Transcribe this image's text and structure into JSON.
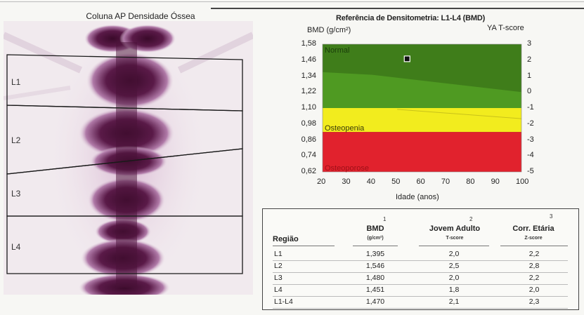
{
  "scan": {
    "title": "Coluna AP Densidade Óssea",
    "rois": [
      "L1",
      "L2",
      "L3",
      "L4"
    ]
  },
  "chart_data": {
    "type": "area",
    "title": "Referência de Densitometria: L1-L4 (BMD)",
    "ylabel": "BMD (g/cm²)",
    "y2label": "YA T-score",
    "xlabel": "Idade (anos)",
    "x_ticks": [
      20,
      30,
      40,
      50,
      60,
      70,
      80,
      90,
      100
    ],
    "y_ticks": [
      "1,58",
      "1,46",
      "1,34",
      "1,22",
      "1,10",
      "0,98",
      "0,86",
      "0,74",
      "0,62"
    ],
    "y2_ticks": [
      "3",
      "2",
      "1",
      "0",
      "-1",
      "-2",
      "-3",
      "-4",
      "-5"
    ],
    "xlim": [
      20,
      100
    ],
    "ylim": [
      0.62,
      1.58
    ],
    "zones": [
      {
        "name": "Normal",
        "color": "#4f9a22"
      },
      {
        "name": "Osteopenia",
        "color": "#f2ec1e"
      },
      {
        "name": "Osteoporose",
        "color": "#e1222d"
      }
    ],
    "normal_band_upper_boundary": [
      [
        20,
        1.37
      ],
      [
        40,
        1.35
      ],
      [
        100,
        1.22
      ]
    ],
    "osteopenia_upper": 1.1,
    "osteoporosis_upper": 0.92,
    "patient_point": {
      "age": 54,
      "bmd": 1.47
    }
  },
  "table": {
    "headers": {
      "region": "Região",
      "bmd": "BMD",
      "bmd_unit": "(g/cm²)",
      "ya": "Jovem Adulto",
      "ya_sub": "T-score",
      "am": "Corr. Etária",
      "am_sub": "Z-score",
      "n1": "1",
      "n2": "2",
      "n3": "3"
    },
    "rows": [
      {
        "region": "L1",
        "bmd": "1,395",
        "t": "2,0",
        "z": "2,2"
      },
      {
        "region": "L2",
        "bmd": "1,546",
        "t": "2,5",
        "z": "2,8"
      },
      {
        "region": "L3",
        "bmd": "1,480",
        "t": "2,0",
        "z": "2,2"
      },
      {
        "region": "L4",
        "bmd": "1,451",
        "t": "1,8",
        "z": "2,0"
      },
      {
        "region": "L1-L4",
        "bmd": "1,470",
        "t": "2,1",
        "z": "2,3"
      }
    ]
  }
}
